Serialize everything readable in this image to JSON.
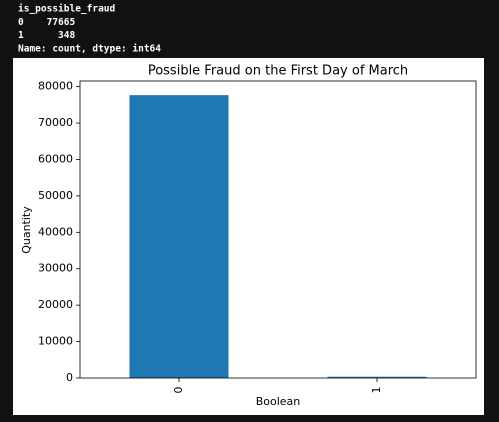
{
  "output_lines": [
    "is_possible_fraud",
    "0    77665",
    "1      348",
    "Name: count, dtype: int64"
  ],
  "chart_data": {
    "type": "bar",
    "title": "Possible Fraud on the First Day of March",
    "x_label": "Boolean",
    "y_label": "Quantity",
    "categories": [
      "0",
      "1"
    ],
    "values": [
      77665,
      348
    ],
    "color": "#1f77b4",
    "ylim": [
      0,
      81548
    ],
    "yticks": [
      0,
      10000,
      20000,
      30000,
      40000,
      50000,
      60000,
      70000,
      80000
    ],
    "grid": false
  }
}
